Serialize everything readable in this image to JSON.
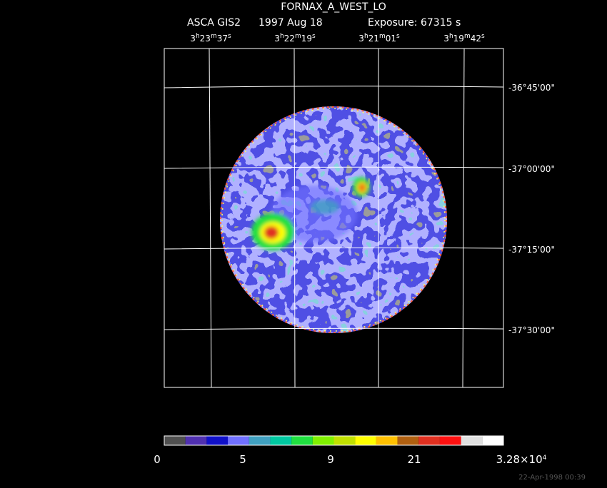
{
  "header": {
    "title": "FORNAX_A_WEST_LO",
    "instrument": "ASCA GIS2",
    "date": "1997 Aug 18",
    "exposure": "Exposure: 67315 s"
  },
  "ra_labels": [
    [
      "3",
      "h",
      "23",
      "m",
      "37",
      "s"
    ],
    [
      "3",
      "h",
      "22",
      "m",
      "19",
      "s"
    ],
    [
      "3",
      "h",
      "21",
      "m",
      "01",
      "s"
    ],
    [
      "3",
      "h",
      "19",
      "m",
      "42",
      "s"
    ]
  ],
  "dec_labels": [
    "-36°45'00\"",
    "-37°00'00\"",
    "-37°15'00\"",
    "-37°30'00\""
  ],
  "colorbar_labels": [
    [
      "0"
    ],
    [
      "5"
    ],
    [
      "9"
    ],
    [
      "21"
    ],
    [
      "3.28×10",
      "4"
    ]
  ],
  "footer": "22-Apr-1998 00:39"
}
